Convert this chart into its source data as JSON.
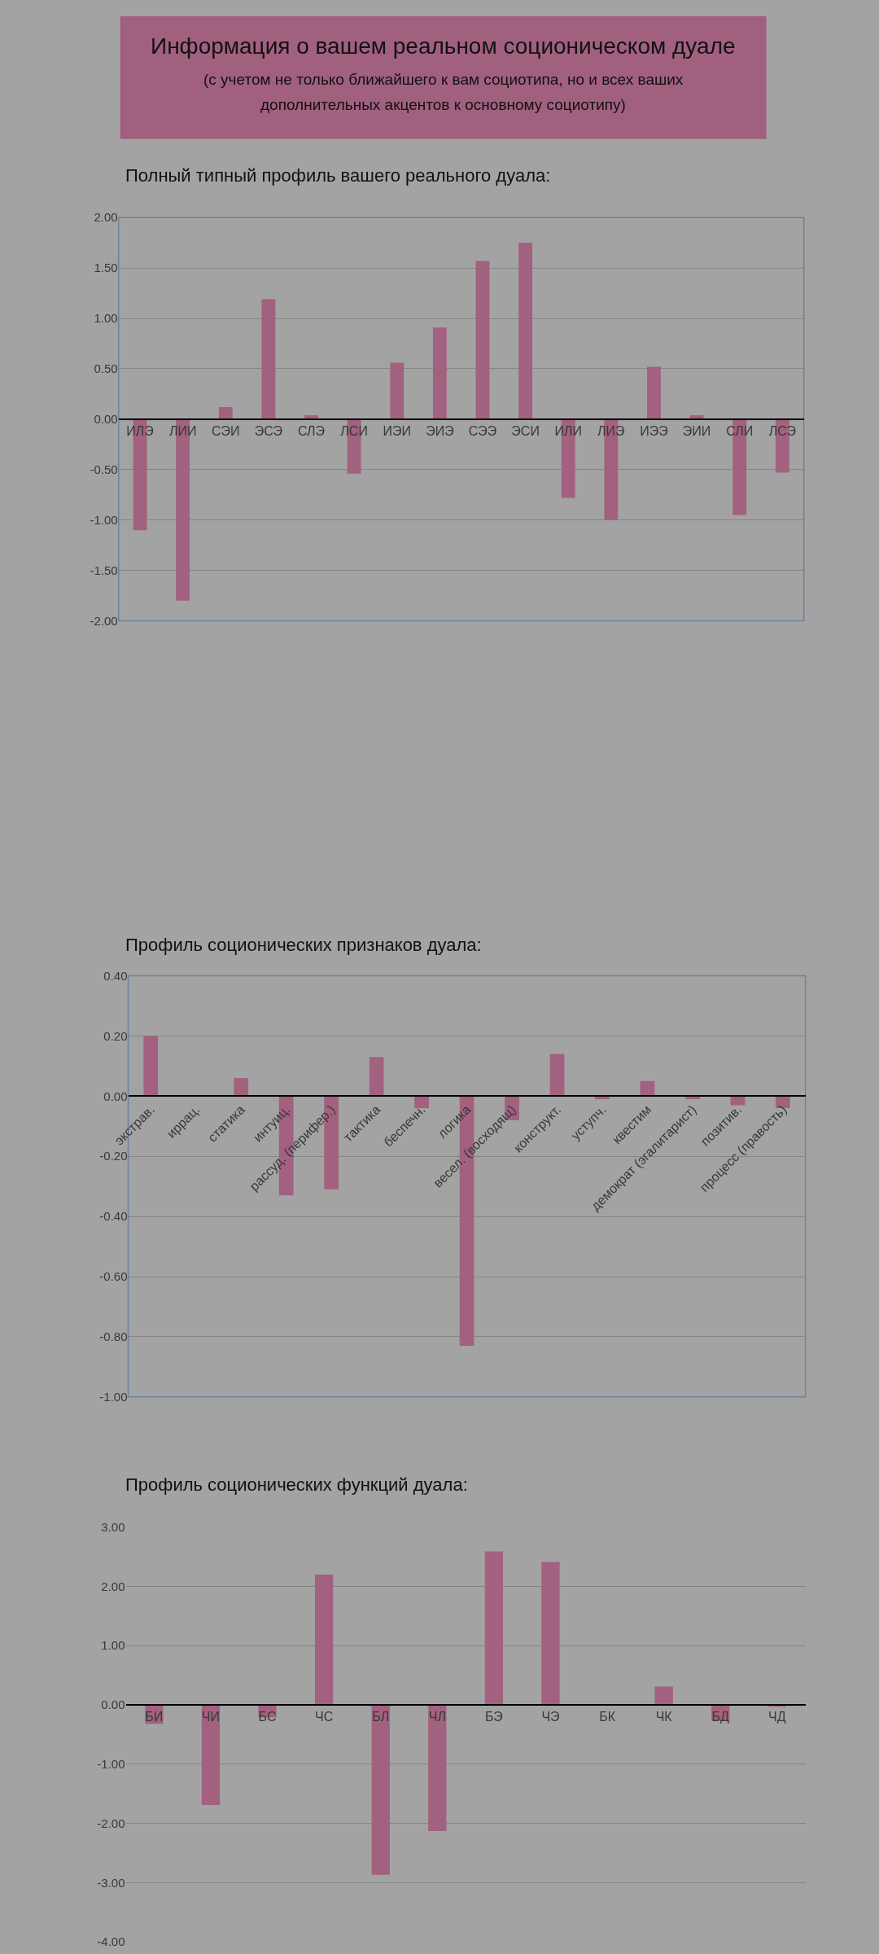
{
  "chart_data": [
    {
      "type": "other",
      "title": "Информация о вашем реальном соционическом дуале",
      "subtitle": "(с учетом не только ближайшего к вам социотипа, но и всех ваших дополнительных акцентов к основному социотипу)"
    },
    {
      "type": "bar",
      "title": "Полный типный профиль вашего реального дуала:",
      "categories": [
        "ИЛЭ",
        "ЛИИ",
        "СЭИ",
        "ЭСЭ",
        "СЛЭ",
        "ЛСИ",
        "ИЭИ",
        "ЭИЭ",
        "СЭЭ",
        "ЭСИ",
        "ИЛИ",
        "ЛИЭ",
        "ИЭЭ",
        "ЭИИ",
        "СЛИ",
        "ЛСЭ"
      ],
      "values": [
        -1.1,
        -1.8,
        0.12,
        1.19,
        0.04,
        -0.54,
        0.56,
        0.91,
        1.57,
        1.75,
        -0.78,
        -1.0,
        0.52,
        0.04,
        -0.95,
        -0.53
      ],
      "color": "#a2617f",
      "ylim": [
        -2,
        2
      ],
      "yticks": [
        {
          "value": -2,
          "label": "-2.00"
        },
        {
          "value": -1.5,
          "label": "-1.50"
        },
        {
          "value": -1,
          "label": "-1.00"
        },
        {
          "value": -0.5,
          "label": "-0.50"
        },
        {
          "value": 0,
          "label": "0.00"
        },
        {
          "value": 0.5,
          "label": "0.50"
        },
        {
          "value": 1,
          "label": "1.00"
        },
        {
          "value": 1.5,
          "label": "1.50"
        },
        {
          "value": 2,
          "label": "2.00"
        }
      ],
      "grid": "y"
    },
    {
      "type": "bar",
      "title": "Профиль соционических признаков дуала:",
      "categories": [
        "экстрав.",
        "иррац.",
        "статика",
        "интуиц.",
        "рассуд. (перифер.)",
        "тактика",
        "беспечн.",
        "логика",
        "весел. (восходящ)",
        "конструкт.",
        "уступч.",
        "квестим",
        "демократ (эгалитарист)",
        "позитив.",
        "процесс (правость)"
      ],
      "values": [
        0.2,
        0.0,
        0.06,
        -0.33,
        -0.31,
        0.13,
        -0.04,
        -0.83,
        -0.08,
        0.14,
        -0.01,
        0.05,
        -0.01,
        -0.03,
        -0.04
      ],
      "color": "#a2617f",
      "ylim": [
        -1,
        0.4
      ],
      "yticks": [
        {
          "value": -1,
          "label": "-1.00"
        },
        {
          "value": -0.8,
          "label": "-0.80"
        },
        {
          "value": -0.6,
          "label": "-0.60"
        },
        {
          "value": -0.4,
          "label": "-0.40"
        },
        {
          "value": -0.2,
          "label": "-0.20"
        },
        {
          "value": 0,
          "label": "0.00"
        },
        {
          "value": 0.2,
          "label": "0.20"
        },
        {
          "value": 0.4,
          "label": "0.40"
        }
      ],
      "grid": "y"
    },
    {
      "type": "bar",
      "title": "Профиль соционических функций дуала:",
      "categories": [
        "БИ",
        "ЧИ",
        "БС",
        "ЧС",
        "БЛ",
        "ЧЛ",
        "БЭ",
        "ЧЭ",
        "БК",
        "ЧК",
        "БД",
        "ЧД"
      ],
      "values": [
        -0.32,
        -1.69,
        -0.21,
        2.2,
        -2.87,
        -2.13,
        2.59,
        2.41,
        0.0,
        0.31,
        -0.27,
        -0.03
      ],
      "color": "#a2617f",
      "ylim": [
        -4,
        3
      ],
      "yticks": [
        {
          "value": -4,
          "label": "-4.00"
        },
        {
          "value": -3,
          "label": "-3.00"
        },
        {
          "value": -2,
          "label": "-2.00"
        },
        {
          "value": -1,
          "label": "-1.00"
        },
        {
          "value": 0,
          "label": "0.00"
        },
        {
          "value": 1,
          "label": "1.00"
        },
        {
          "value": 2,
          "label": "2.00"
        },
        {
          "value": 3,
          "label": "3.00"
        }
      ],
      "grid": "y"
    }
  ]
}
